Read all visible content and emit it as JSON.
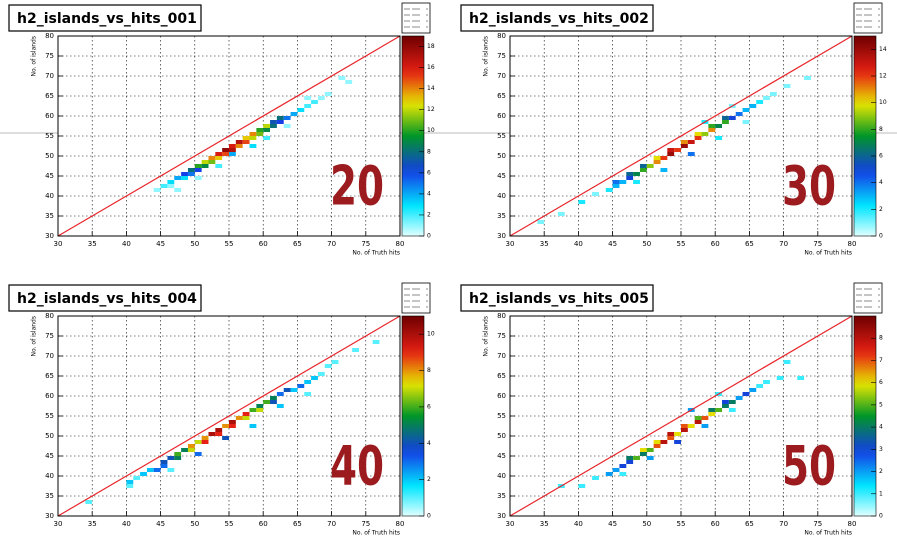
{
  "chart_data": [
    {
      "type": "heatmap",
      "title": "h2_islands_vs_hits_001",
      "label": "20",
      "xlabel": "No. of Truth hits",
      "ylabel": "No. of islands",
      "xlim": [
        30,
        80
      ],
      "ylim": [
        30,
        80
      ],
      "xticks": [
        30,
        35,
        40,
        45,
        50,
        55,
        60,
        65,
        70,
        75,
        80
      ],
      "yticks": [
        30,
        35,
        40,
        45,
        50,
        55,
        60,
        65,
        70,
        75,
        80
      ],
      "zlim": [
        0,
        19
      ],
      "zticks": [
        0,
        2,
        4,
        6,
        8,
        10,
        12,
        14,
        16,
        18
      ],
      "grid": true,
      "cells": [
        [
          44,
          41,
          1
        ],
        [
          45,
          42,
          2
        ],
        [
          46,
          42,
          1
        ],
        [
          46,
          43,
          3
        ],
        [
          47,
          44,
          4
        ],
        [
          48,
          44,
          3
        ],
        [
          48,
          45,
          6
        ],
        [
          49,
          45,
          5
        ],
        [
          49,
          46,
          8
        ],
        [
          50,
          46,
          6
        ],
        [
          50,
          47,
          10
        ],
        [
          51,
          47,
          9
        ],
        [
          51,
          48,
          12
        ],
        [
          52,
          48,
          11
        ],
        [
          52,
          49,
          14
        ],
        [
          53,
          49,
          13
        ],
        [
          53,
          50,
          16
        ],
        [
          54,
          50,
          15
        ],
        [
          54,
          51,
          18
        ],
        [
          55,
          51,
          17
        ],
        [
          55,
          52,
          16
        ],
        [
          56,
          52,
          14
        ],
        [
          56,
          53,
          17
        ],
        [
          57,
          53,
          15
        ],
        [
          57,
          54,
          13
        ],
        [
          58,
          54,
          12
        ],
        [
          58,
          55,
          14
        ],
        [
          59,
          55,
          11
        ],
        [
          59,
          56,
          10
        ],
        [
          60,
          56,
          9
        ],
        [
          60,
          57,
          12
        ],
        [
          61,
          57,
          8
        ],
        [
          61,
          58,
          7
        ],
        [
          62,
          58,
          6
        ],
        [
          62,
          59,
          8
        ],
        [
          63,
          59,
          5
        ],
        [
          64,
          60,
          4
        ],
        [
          65,
          61,
          3
        ],
        [
          66,
          62,
          2
        ],
        [
          67,
          63,
          2
        ],
        [
          68,
          64,
          1
        ],
        [
          69,
          65,
          1
        ],
        [
          72,
          68,
          1
        ],
        [
          47,
          41,
          1
        ],
        [
          53,
          47,
          2
        ],
        [
          55,
          50,
          4
        ],
        [
          58,
          52,
          3
        ],
        [
          60,
          54,
          2
        ],
        [
          50,
          44,
          1
        ],
        [
          63,
          57,
          1
        ],
        [
          66,
          64,
          1
        ],
        [
          71,
          69,
          1
        ]
      ]
    },
    {
      "type": "heatmap",
      "title": "h2_islands_vs_hits_002",
      "label": "30",
      "xlabel": "No. of Truth hits",
      "ylabel": "No. of islands",
      "xlim": [
        30,
        80
      ],
      "ylim": [
        30,
        80
      ],
      "xticks": [
        30,
        35,
        40,
        45,
        50,
        55,
        60,
        65,
        70,
        75,
        80
      ],
      "yticks": [
        30,
        35,
        40,
        45,
        50,
        55,
        60,
        65,
        70,
        75,
        80
      ],
      "zlim": [
        0,
        15
      ],
      "zticks": [
        0,
        2,
        4,
        6,
        8,
        10,
        12,
        14
      ],
      "grid": true,
      "cells": [
        [
          34,
          33,
          1
        ],
        [
          37,
          35,
          1
        ],
        [
          40,
          38,
          2
        ],
        [
          42,
          40,
          1
        ],
        [
          44,
          41,
          2
        ],
        [
          45,
          42,
          3
        ],
        [
          45,
          43,
          4
        ],
        [
          46,
          43,
          3
        ],
        [
          47,
          44,
          5
        ],
        [
          47,
          45,
          6
        ],
        [
          48,
          45,
          7
        ],
        [
          49,
          46,
          8
        ],
        [
          49,
          47,
          6
        ],
        [
          50,
          47,
          9
        ],
        [
          51,
          48,
          11
        ],
        [
          51,
          49,
          10
        ],
        [
          52,
          49,
          12
        ],
        [
          53,
          50,
          14
        ],
        [
          53,
          51,
          13
        ],
        [
          54,
          51,
          12
        ],
        [
          55,
          52,
          14
        ],
        [
          55,
          53,
          11
        ],
        [
          56,
          53,
          13
        ],
        [
          57,
          54,
          12
        ],
        [
          57,
          55,
          10
        ],
        [
          58,
          55,
          9
        ],
        [
          59,
          56,
          11
        ],
        [
          59,
          57,
          8
        ],
        [
          60,
          57,
          7
        ],
        [
          61,
          58,
          8
        ],
        [
          61,
          59,
          6
        ],
        [
          62,
          59,
          5
        ],
        [
          63,
          60,
          4
        ],
        [
          64,
          61,
          3
        ],
        [
          65,
          62,
          3
        ],
        [
          66,
          63,
          2
        ],
        [
          67,
          64,
          1
        ],
        [
          68,
          65,
          1
        ],
        [
          70,
          67,
          1
        ],
        [
          52,
          46,
          3
        ],
        [
          56,
          50,
          4
        ],
        [
          60,
          54,
          2
        ],
        [
          48,
          43,
          2
        ],
        [
          64,
          58,
          1
        ],
        [
          73,
          69,
          1
        ],
        [
          58,
          58,
          2
        ],
        [
          62,
          62,
          1
        ]
      ]
    },
    {
      "type": "heatmap",
      "title": "h2_islands_vs_hits_004",
      "label": "40",
      "xlabel": "No. of Truth hits",
      "ylabel": "No. of islands",
      "xlim": [
        30,
        80
      ],
      "ylim": [
        30,
        80
      ],
      "xticks": [
        30,
        35,
        40,
        45,
        50,
        55,
        60,
        65,
        70,
        75,
        80
      ],
      "yticks": [
        30,
        35,
        40,
        45,
        50,
        55,
        60,
        65,
        70,
        75,
        80
      ],
      "zlim": [
        0,
        11
      ],
      "zticks": [
        0,
        2,
        4,
        6,
        8,
        10
      ],
      "grid": true,
      "cells": [
        [
          34,
          33,
          1
        ],
        [
          40,
          37,
          1
        ],
        [
          40,
          38,
          2
        ],
        [
          41,
          39,
          1
        ],
        [
          42,
          40,
          2
        ],
        [
          43,
          41,
          2
        ],
        [
          44,
          41,
          3
        ],
        [
          45,
          42,
          3
        ],
        [
          45,
          43,
          4
        ],
        [
          46,
          44,
          4
        ],
        [
          47,
          44,
          5
        ],
        [
          47,
          45,
          6
        ],
        [
          48,
          46,
          5
        ],
        [
          49,
          46,
          7
        ],
        [
          49,
          47,
          8
        ],
        [
          50,
          48,
          7
        ],
        [
          51,
          48,
          9
        ],
        [
          51,
          49,
          8
        ],
        [
          52,
          50,
          10
        ],
        [
          53,
          50,
          9
        ],
        [
          53,
          51,
          10
        ],
        [
          54,
          52,
          8
        ],
        [
          55,
          52,
          9
        ],
        [
          55,
          53,
          10
        ],
        [
          56,
          54,
          8
        ],
        [
          57,
          54,
          7
        ],
        [
          57,
          55,
          9
        ],
        [
          58,
          56,
          6
        ],
        [
          59,
          56,
          7
        ],
        [
          59,
          57,
          5
        ],
        [
          60,
          58,
          6
        ],
        [
          61,
          58,
          4
        ],
        [
          61,
          59,
          5
        ],
        [
          62,
          60,
          3
        ],
        [
          63,
          61,
          4
        ],
        [
          64,
          61,
          2
        ],
        [
          65,
          62,
          3
        ],
        [
          66,
          63,
          2
        ],
        [
          67,
          64,
          2
        ],
        [
          68,
          65,
          1
        ],
        [
          69,
          67,
          1
        ],
        [
          70,
          68,
          1
        ],
        [
          73,
          71,
          1
        ],
        [
          76,
          73,
          1
        ],
        [
          50,
          45,
          3
        ],
        [
          54,
          49,
          4
        ],
        [
          58,
          52,
          2
        ],
        [
          62,
          57,
          2
        ],
        [
          46,
          41,
          1
        ],
        [
          66,
          60,
          1
        ]
      ]
    },
    {
      "type": "heatmap",
      "title": "h2_islands_vs_hits_005",
      "label": "50",
      "xlabel": "No. of Truth hits",
      "ylabel": "No. of islands",
      "xlim": [
        30,
        80
      ],
      "ylim": [
        30,
        80
      ],
      "xticks": [
        30,
        35,
        40,
        45,
        50,
        55,
        60,
        65,
        70,
        75,
        80
      ],
      "yticks": [
        30,
        35,
        40,
        45,
        50,
        55,
        60,
        65,
        70,
        75,
        80
      ],
      "zlim": [
        0,
        9
      ],
      "zticks": [
        0,
        1,
        2,
        3,
        4,
        5,
        6,
        7,
        8
      ],
      "grid": true,
      "cells": [
        [
          37,
          37,
          1
        ],
        [
          40,
          37,
          1
        ],
        [
          42,
          39,
          1
        ],
        [
          44,
          40,
          2
        ],
        [
          45,
          41,
          2
        ],
        [
          46,
          42,
          3
        ],
        [
          47,
          43,
          3
        ],
        [
          47,
          44,
          4
        ],
        [
          48,
          44,
          5
        ],
        [
          49,
          45,
          4
        ],
        [
          49,
          46,
          6
        ],
        [
          50,
          46,
          5
        ],
        [
          51,
          47,
          7
        ],
        [
          51,
          48,
          6
        ],
        [
          52,
          48,
          8
        ],
        [
          53,
          49,
          7
        ],
        [
          53,
          50,
          8
        ],
        [
          54,
          50,
          6
        ],
        [
          55,
          51,
          8
        ],
        [
          55,
          52,
          7
        ],
        [
          56,
          52,
          6
        ],
        [
          57,
          53,
          8
        ],
        [
          57,
          54,
          5
        ],
        [
          58,
          54,
          7
        ],
        [
          59,
          55,
          6
        ],
        [
          59,
          56,
          4
        ],
        [
          60,
          56,
          5
        ],
        [
          61,
          57,
          4
        ],
        [
          61,
          58,
          3
        ],
        [
          62,
          58,
          4
        ],
        [
          63,
          59,
          2
        ],
        [
          64,
          60,
          3
        ],
        [
          65,
          61,
          2
        ],
        [
          66,
          62,
          1
        ],
        [
          67,
          63,
          1
        ],
        [
          69,
          64,
          1
        ],
        [
          70,
          68,
          1
        ],
        [
          72,
          64,
          1
        ],
        [
          50,
          44,
          2
        ],
        [
          54,
          48,
          3
        ],
        [
          58,
          52,
          2
        ],
        [
          62,
          56,
          1
        ],
        [
          46,
          40,
          1
        ],
        [
          56,
          56,
          2
        ],
        [
          60,
          60,
          1
        ]
      ]
    }
  ]
}
